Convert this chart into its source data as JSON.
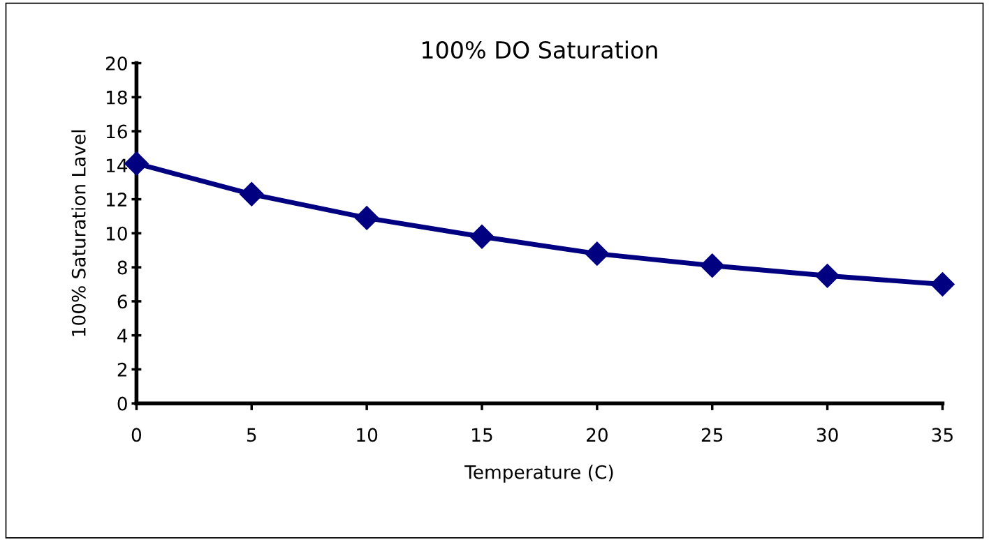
{
  "chart_data": {
    "type": "line",
    "title": "100% DO Saturation",
    "xlabel": "Temperature (C)",
    "ylabel": "100% Saturation Lavel",
    "x": [
      0,
      5,
      10,
      15,
      20,
      25,
      30,
      35
    ],
    "series": [
      {
        "color": "#000080",
        "values": [
          14.1,
          12.3,
          10.9,
          9.8,
          8.8,
          8.1,
          7.5,
          7.0
        ]
      }
    ],
    "xlim": [
      0,
      35
    ],
    "xticks": [
      0,
      5,
      10,
      15,
      20,
      25,
      30,
      35
    ],
    "ylim": [
      0,
      20
    ],
    "yticks": [
      0,
      2,
      4,
      6,
      8,
      10,
      12,
      14,
      16,
      18,
      20
    ],
    "marker": "diamond",
    "line_style": "solid",
    "grid": false
  }
}
